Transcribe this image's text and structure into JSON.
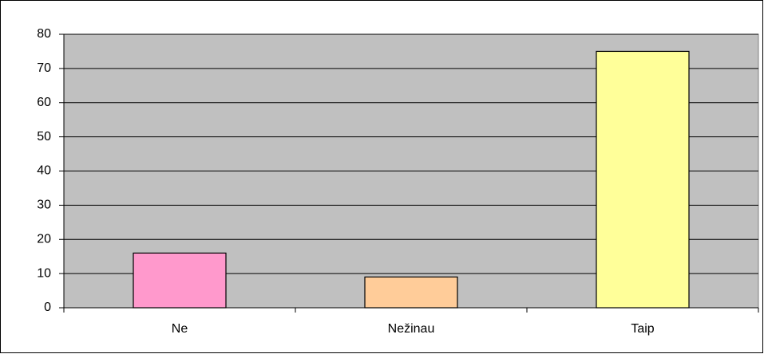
{
  "chart_data": {
    "type": "bar",
    "categories": [
      "Ne",
      "Nežinau",
      "Taip"
    ],
    "values": [
      16,
      9,
      75
    ],
    "colors": [
      "#ff99cc",
      "#ffcc99",
      "#ffff99"
    ],
    "ylim": [
      0,
      80
    ],
    "yticks": [
      0,
      10,
      20,
      30,
      40,
      50,
      60,
      70,
      80
    ],
    "grid": true
  }
}
